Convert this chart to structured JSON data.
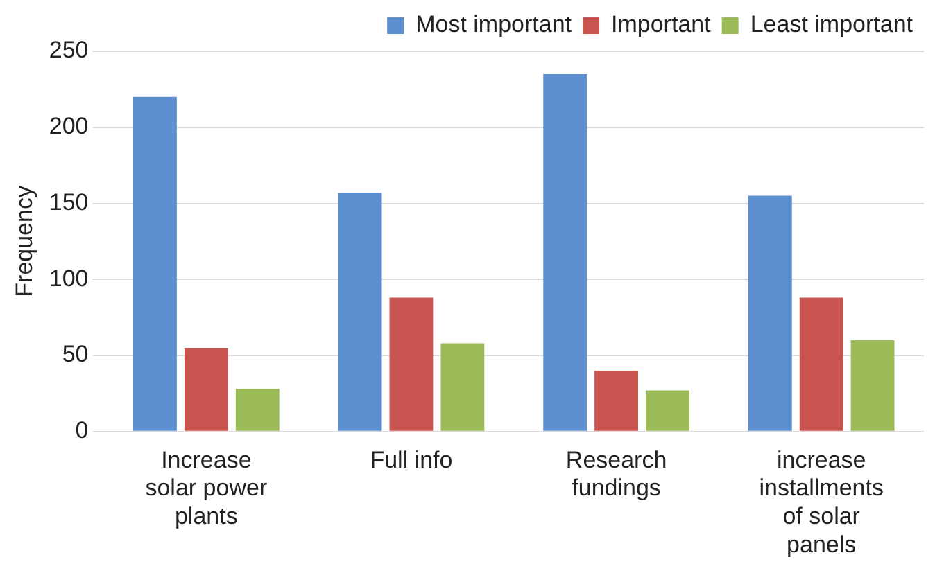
{
  "chart_data": {
    "type": "bar",
    "ylabel": "Frequency",
    "categories": [
      "Increase solar power plants",
      "Full info",
      "Research fundings",
      "increase installments of solar panels"
    ],
    "series": [
      {
        "name": "Most important",
        "color": "#5b8fcf",
        "values": [
          220,
          157,
          235,
          155
        ]
      },
      {
        "name": "Important",
        "color": "#c9544f",
        "values": [
          55,
          88,
          40,
          88
        ]
      },
      {
        "name": "Least important",
        "color": "#9bbb59",
        "values": [
          28,
          58,
          27,
          60
        ]
      }
    ],
    "ylim": [
      0,
      250
    ],
    "yticks": [
      0,
      50,
      100,
      150,
      200,
      250
    ],
    "grid": "y",
    "legend": "top right"
  }
}
